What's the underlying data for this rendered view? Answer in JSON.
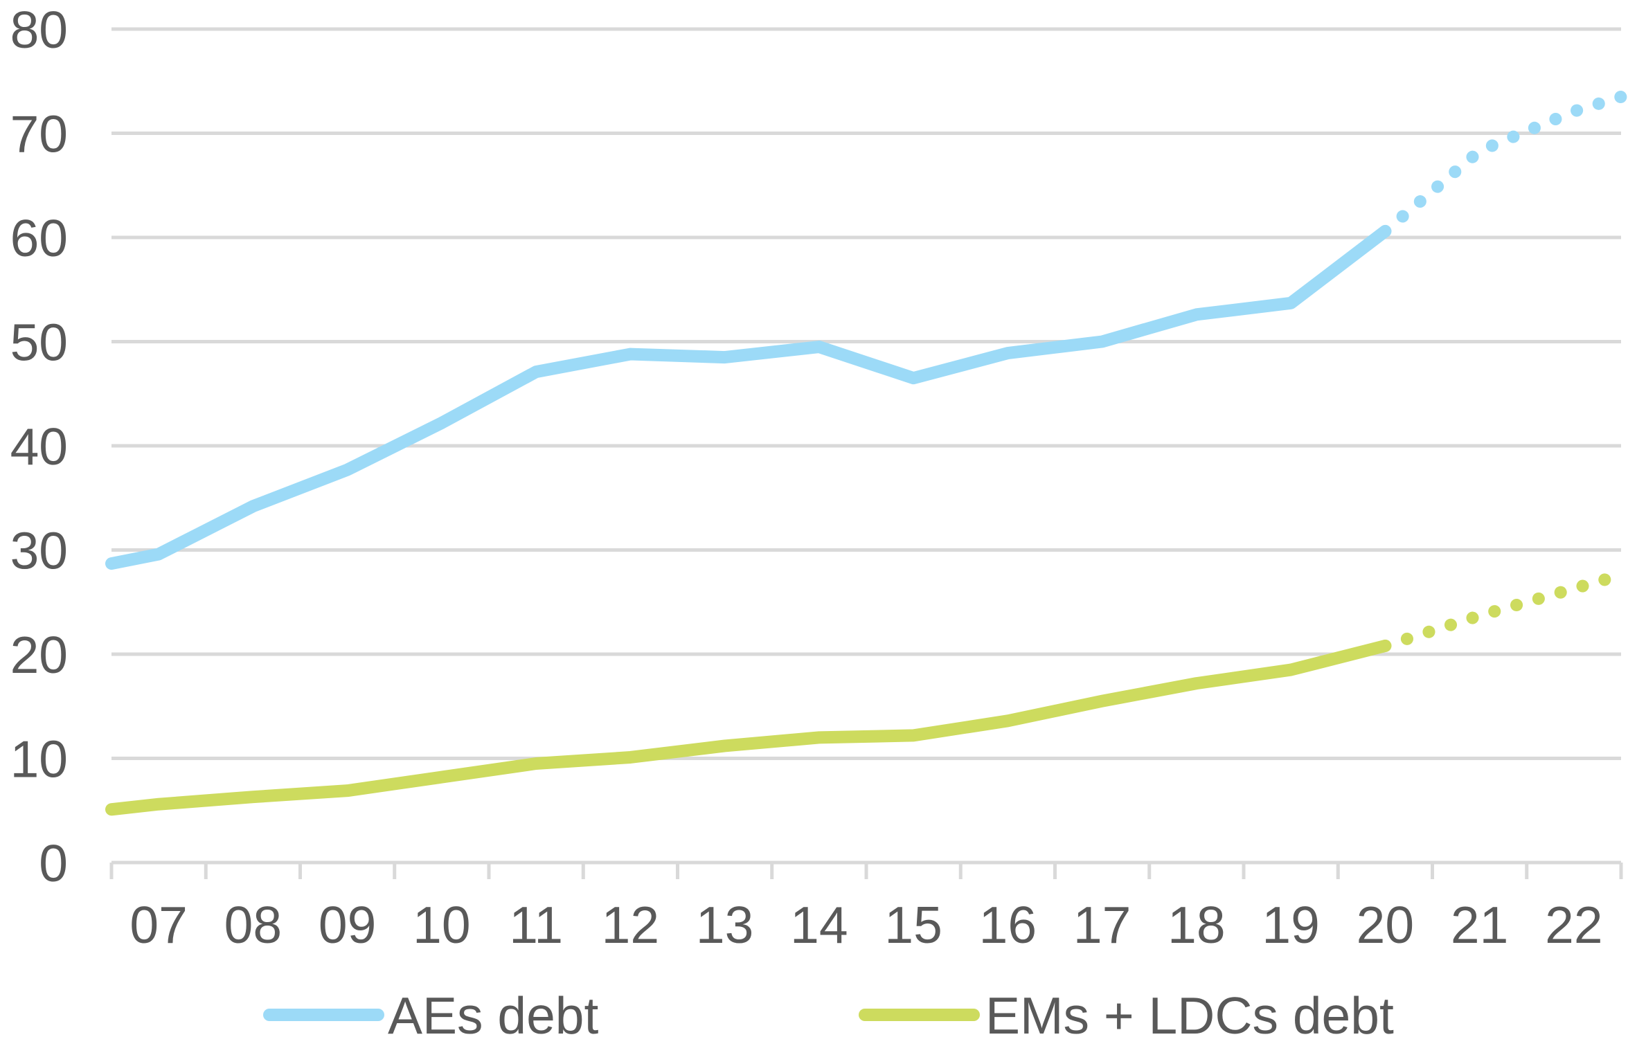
{
  "style": {
    "text_color": "#595959",
    "grid_color": "#d9d9d9"
  },
  "chart_data": {
    "type": "line",
    "categories": [
      "07",
      "08",
      "09",
      "10",
      "11",
      "12",
      "13",
      "14",
      "15",
      "16",
      "17",
      "18",
      "19",
      "20",
      "21",
      "22"
    ],
    "xlim": [
      6.5,
      22.5
    ],
    "ylim": [
      0,
      80
    ],
    "y_ticks": [
      0,
      10,
      20,
      30,
      40,
      50,
      60,
      70,
      80
    ],
    "grid": true,
    "legend_position": "bottom",
    "series": [
      {
        "name": "AEs debt",
        "color": "#9cdaf7",
        "x": [
          6.5,
          7,
          8,
          9,
          10,
          11,
          12,
          13,
          14,
          15,
          16,
          17,
          18,
          19,
          20
        ],
        "values": [
          28.7,
          29.6,
          34.2,
          37.7,
          42.2,
          47.1,
          48.8,
          48.5,
          49.5,
          46.5,
          48.9,
          50.0,
          52.6,
          53.7,
          60.6
        ],
        "projection": {
          "x": [
            20,
            21,
            22,
            22.5
          ],
          "values": [
            60.6,
            68.3,
            72.1,
            73.5
          ]
        }
      },
      {
        "name": "EMs + LDCs debt",
        "color": "#cddb5e",
        "x": [
          6.5,
          7,
          8,
          9,
          10,
          11,
          12,
          13,
          14,
          15,
          16,
          17,
          18,
          19,
          20
        ],
        "values": [
          5.1,
          5.6,
          6.3,
          6.9,
          8.2,
          9.5,
          10.1,
          11.2,
          12.0,
          12.2,
          13.6,
          15.5,
          17.2,
          18.5,
          20.8
        ],
        "projection": {
          "x": [
            20,
            21,
            22,
            22.5
          ],
          "values": [
            20.8,
            23.7,
            26.3,
            27.6
          ]
        }
      }
    ]
  }
}
